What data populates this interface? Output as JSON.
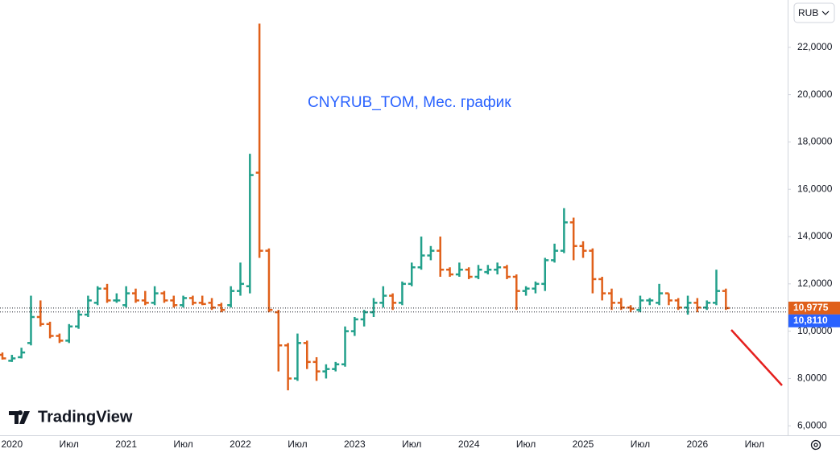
{
  "chart_data": {
    "type": "ohlc",
    "title": "CNYRUB_TOM, Мес. график",
    "currency": "RUB",
    "brand": "TradingView",
    "up_color": "#22a08b",
    "down_color": "#e0601a",
    "categories": [
      null,
      "2020",
      null,
      null,
      null,
      null,
      null,
      "Июл",
      null,
      null,
      null,
      null,
      null,
      "2021",
      null,
      null,
      null,
      null,
      null,
      "Июл",
      null,
      null,
      null,
      null,
      null,
      "2022",
      null,
      null,
      null,
      null,
      null,
      "Июл",
      null,
      null,
      null,
      null,
      null,
      "2023",
      null,
      null,
      null,
      null,
      null,
      "Июл",
      null,
      null,
      null,
      null,
      null,
      "2024",
      null,
      null,
      null,
      null,
      null,
      "Июл",
      null,
      null,
      null,
      null,
      null,
      "2025",
      null,
      null,
      null,
      null,
      null,
      "Июл",
      null,
      null,
      null,
      null,
      null,
      "2026",
      null,
      null,
      null,
      null,
      null,
      "Июл"
    ],
    "open": [
      9.0,
      8.75,
      8.9,
      9.5,
      10.6,
      10.3,
      9.8,
      9.6,
      10.2,
      10.7,
      11.2,
      11.8,
      11.3,
      11.1,
      11.6,
      11.3,
      11.2,
      11.6,
      11.3,
      11.1,
      11.4,
      11.2,
      11.2,
      11.1,
      11.1,
      11.7,
      11.9,
      16.7,
      13.4,
      10.8,
      9.4,
      8.0,
      9.5,
      8.7,
      8.3,
      8.4,
      8.6,
      10.0,
      10.5,
      10.8,
      11.2,
      11.5,
      11.2,
      12.0,
      12.7,
      13.2,
      13.4,
      12.6,
      12.4,
      12.6,
      12.3,
      12.5,
      12.6,
      12.7,
      12.3,
      11.7,
      11.8,
      12.0,
      13.0,
      13.4,
      14.6,
      13.6,
      13.4,
      12.2,
      11.6,
      11.2,
      11.0,
      10.9,
      11.3,
      11.2,
      11.6,
      11.3,
      11.0,
      11.2,
      11.0,
      11.2,
      11.7,
      null,
      null,
      null
    ],
    "high": [
      9.1,
      9.0,
      9.3,
      11.5,
      11.3,
      10.4,
      9.9,
      10.3,
      10.9,
      11.5,
      11.9,
      12.0,
      11.6,
      11.9,
      11.8,
      11.7,
      11.9,
      11.7,
      11.5,
      11.5,
      11.5,
      11.5,
      11.4,
      11.2,
      11.9,
      12.9,
      17.5,
      23.0,
      13.5,
      10.9,
      9.5,
      9.9,
      9.6,
      8.9,
      8.6,
      8.7,
      10.2,
      10.6,
      10.9,
      11.4,
      11.9,
      11.6,
      12.1,
      12.9,
      14.0,
      13.6,
      14.0,
      12.7,
      12.9,
      12.7,
      12.8,
      12.8,
      12.9,
      12.8,
      12.4,
      11.9,
      12.1,
      13.1,
      13.7,
      15.2,
      14.8,
      13.8,
      13.5,
      12.3,
      11.8,
      11.4,
      11.1,
      11.5,
      11.4,
      12.0,
      11.6,
      11.4,
      11.5,
      11.4,
      11.3,
      12.6,
      11.8,
      null,
      null,
      null
    ],
    "low": [
      8.8,
      8.7,
      8.85,
      9.4,
      10.2,
      9.7,
      9.5,
      9.5,
      10.1,
      10.6,
      11.1,
      11.2,
      11.2,
      11.0,
      11.2,
      11.1,
      11.1,
      11.2,
      11.0,
      11.0,
      11.1,
      11.1,
      10.9,
      10.8,
      11.0,
      11.5,
      11.6,
      13.1,
      10.8,
      8.3,
      7.5,
      7.9,
      8.4,
      7.9,
      8.0,
      8.3,
      8.5,
      9.8,
      10.2,
      10.6,
      11.0,
      10.9,
      11.1,
      11.9,
      12.6,
      13.0,
      12.3,
      12.3,
      12.3,
      12.2,
      12.2,
      12.4,
      12.4,
      12.2,
      10.9,
      11.5,
      11.6,
      11.7,
      12.9,
      13.3,
      13.0,
      13.1,
      11.6,
      11.3,
      10.9,
      10.9,
      10.8,
      10.8,
      11.1,
      11.1,
      11.1,
      10.9,
      10.7,
      10.8,
      10.9,
      11.1,
      10.9,
      null,
      null,
      null
    ],
    "close": [
      8.85,
      8.85,
      9.1,
      10.6,
      10.3,
      9.8,
      9.6,
      10.2,
      10.7,
      11.3,
      11.8,
      11.3,
      11.3,
      11.6,
      11.3,
      11.2,
      11.6,
      11.3,
      11.1,
      11.4,
      11.2,
      11.15,
      11.0,
      10.9,
      11.7,
      12.0,
      16.6,
      13.4,
      10.9,
      9.4,
      8.0,
      9.5,
      8.7,
      8.3,
      8.4,
      8.6,
      10.0,
      10.5,
      10.8,
      11.2,
      11.5,
      11.2,
      12.0,
      12.7,
      13.2,
      13.4,
      12.6,
      12.4,
      12.6,
      12.3,
      12.6,
      12.6,
      12.7,
      12.3,
      11.7,
      11.8,
      12.0,
      13.0,
      13.4,
      14.6,
      13.6,
      13.4,
      12.2,
      11.6,
      11.2,
      11.0,
      10.95,
      11.3,
      11.3,
      11.6,
      11.3,
      11.0,
      11.2,
      11.0,
      11.2,
      11.7,
      10.9775,
      null,
      null,
      null
    ],
    "last_price_label": "10,9775",
    "price_line": {
      "value": 10.811,
      "label": "10,8110"
    },
    "ylim": [
      5.6,
      24.0
    ],
    "yticks": [
      {
        "value": 6,
        "label": "6,0000"
      },
      {
        "value": 8,
        "label": "8,0000"
      },
      {
        "value": 10,
        "label": "10,0000"
      },
      {
        "value": 12,
        "label": "12,0000"
      },
      {
        "value": 14,
        "label": "14,0000"
      },
      {
        "value": 16,
        "label": "16,0000"
      },
      {
        "value": 18,
        "label": "18,0000"
      },
      {
        "value": 20,
        "label": "20,0000"
      },
      {
        "value": 22,
        "label": "22,0000"
      }
    ]
  }
}
